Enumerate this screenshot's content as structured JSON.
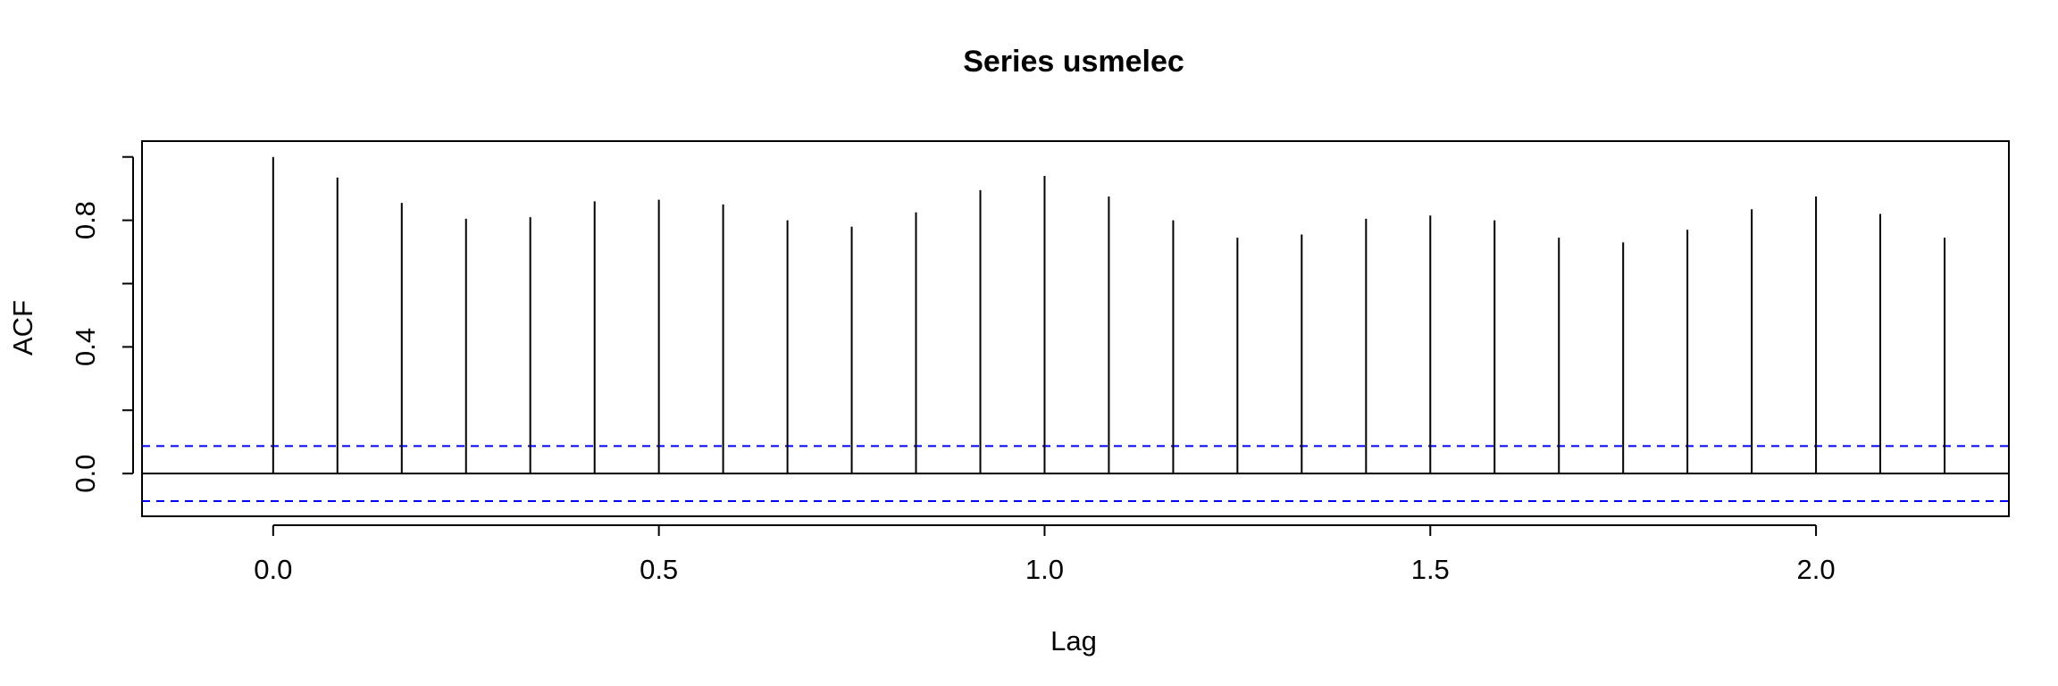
{
  "chart_data": {
    "type": "bar",
    "title": "Series  usmelec",
    "xlabel": "Lag",
    "ylabel": "ACF",
    "x": [
      0.0,
      0.0833,
      0.1667,
      0.25,
      0.3333,
      0.4167,
      0.5,
      0.5833,
      0.6667,
      0.75,
      0.8333,
      0.9167,
      1.0,
      1.0833,
      1.1667,
      1.25,
      1.3333,
      1.4167,
      1.5,
      1.5833,
      1.6667,
      1.75,
      1.8333,
      1.9167,
      2.0,
      2.0833,
      2.1667
    ],
    "values": [
      1.0,
      0.935,
      0.855,
      0.805,
      0.81,
      0.86,
      0.865,
      0.85,
      0.8,
      0.78,
      0.825,
      0.895,
      0.94,
      0.875,
      0.8,
      0.745,
      0.755,
      0.805,
      0.815,
      0.8,
      0.745,
      0.73,
      0.77,
      0.835,
      0.875,
      0.82,
      0.745
    ],
    "conf_limit": 0.087,
    "xlim": [
      -0.17,
      2.25
    ],
    "ylim": [
      -0.135,
      1.05
    ],
    "x_ticks": [
      "0.0",
      "0.5",
      "1.0",
      "1.5",
      "2.0"
    ],
    "y_ticks": [
      "0.0",
      "0.4",
      "0.8"
    ],
    "grid": false,
    "colors": {
      "bars": "#000000",
      "confidence": "#0000ff"
    }
  }
}
